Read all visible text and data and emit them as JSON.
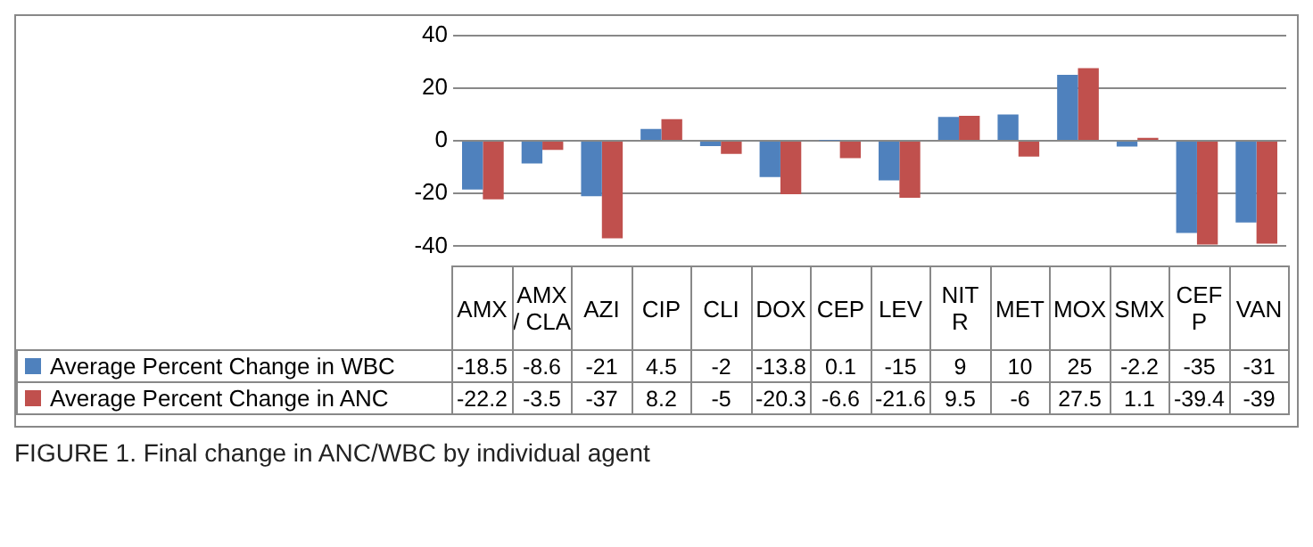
{
  "chart_data": {
    "type": "bar",
    "categories": [
      "AMX",
      "AMX / CLA",
      "AZI",
      "CIP",
      "CLI",
      "DOX",
      "CEP",
      "LEV",
      "NIT R",
      "MET",
      "MOX",
      "SMX",
      "CEF P",
      "VAN"
    ],
    "series": [
      {
        "name": "Average Percent Change in WBC",
        "color": "#4f81bd",
        "values": [
          -18.5,
          -8.6,
          -21,
          4.5,
          -2,
          -13.8,
          0.1,
          -15,
          9,
          10,
          25,
          -2.2,
          -35,
          -31
        ]
      },
      {
        "name": "Average Percent Change in ANC",
        "color": "#c0504d",
        "values": [
          -22.2,
          -3.5,
          -37,
          8.2,
          -5,
          -20.3,
          -6.6,
          -21.6,
          9.5,
          -6,
          27.5,
          1.1,
          -39.4,
          -39
        ]
      }
    ],
    "ylim": [
      -40,
      40
    ],
    "yticks": [
      -40,
      -20,
      0,
      20,
      40
    ],
    "grid": "y",
    "legend": "bottom",
    "data_labels": true,
    "annotations": [
      "FIGURE 1. Final change in ANC/WBC by individual agent"
    ]
  }
}
